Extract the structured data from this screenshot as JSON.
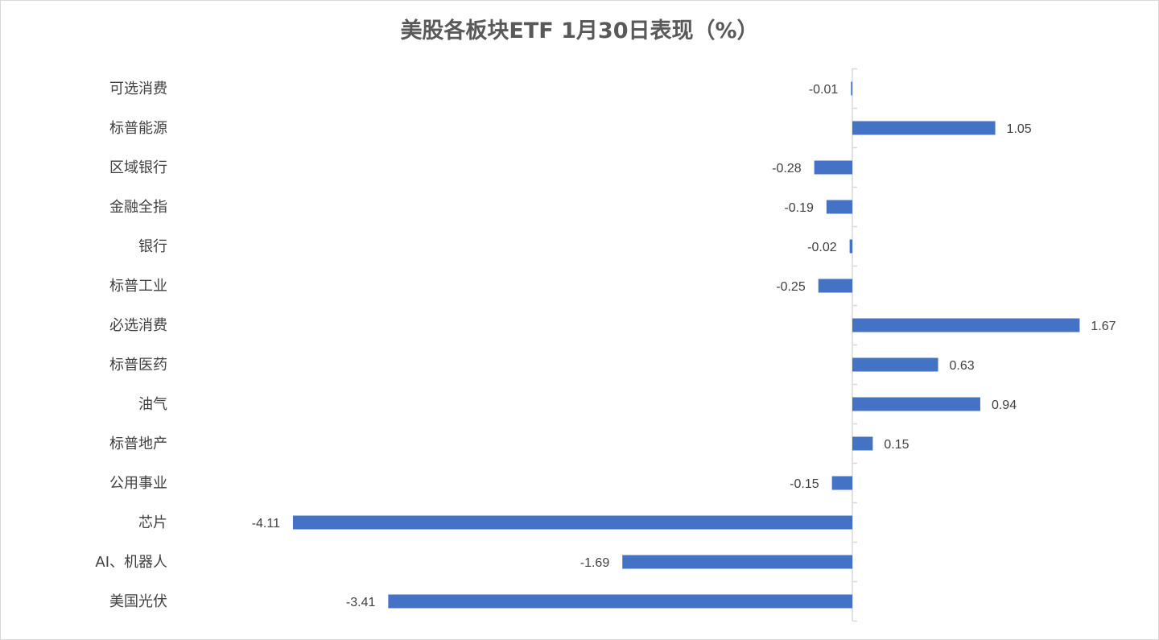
{
  "chart_data": {
    "type": "bar",
    "orientation": "horizontal",
    "title": "美股各板块ETF  1月30日表现（%）",
    "categories": [
      "可选消费",
      "标普能源",
      "区域银行",
      "金融全指",
      "银行",
      "标普工业",
      "必选消费",
      "标普医药",
      "油气",
      "标普地产",
      "公用事业",
      "芯片",
      "AI、机器人",
      "美国光伏"
    ],
    "values": [
      -0.01,
      1.05,
      -0.28,
      -0.19,
      -0.02,
      -0.25,
      1.67,
      0.63,
      0.94,
      0.15,
      -0.15,
      -4.11,
      -1.69,
      -3.41
    ],
    "value_labels": [
      "-0.01",
      "1.05",
      "-0.28",
      "-0.19",
      "-0.02",
      "-0.25",
      "1.67",
      "0.63",
      "0.94",
      "0.15",
      "-0.15",
      "-4.11",
      "-1.69",
      "-3.41"
    ],
    "bar_color": "#4472c4",
    "axis_color": "#d9d9d9",
    "data_labels": true,
    "grid": false,
    "legend": "none"
  }
}
